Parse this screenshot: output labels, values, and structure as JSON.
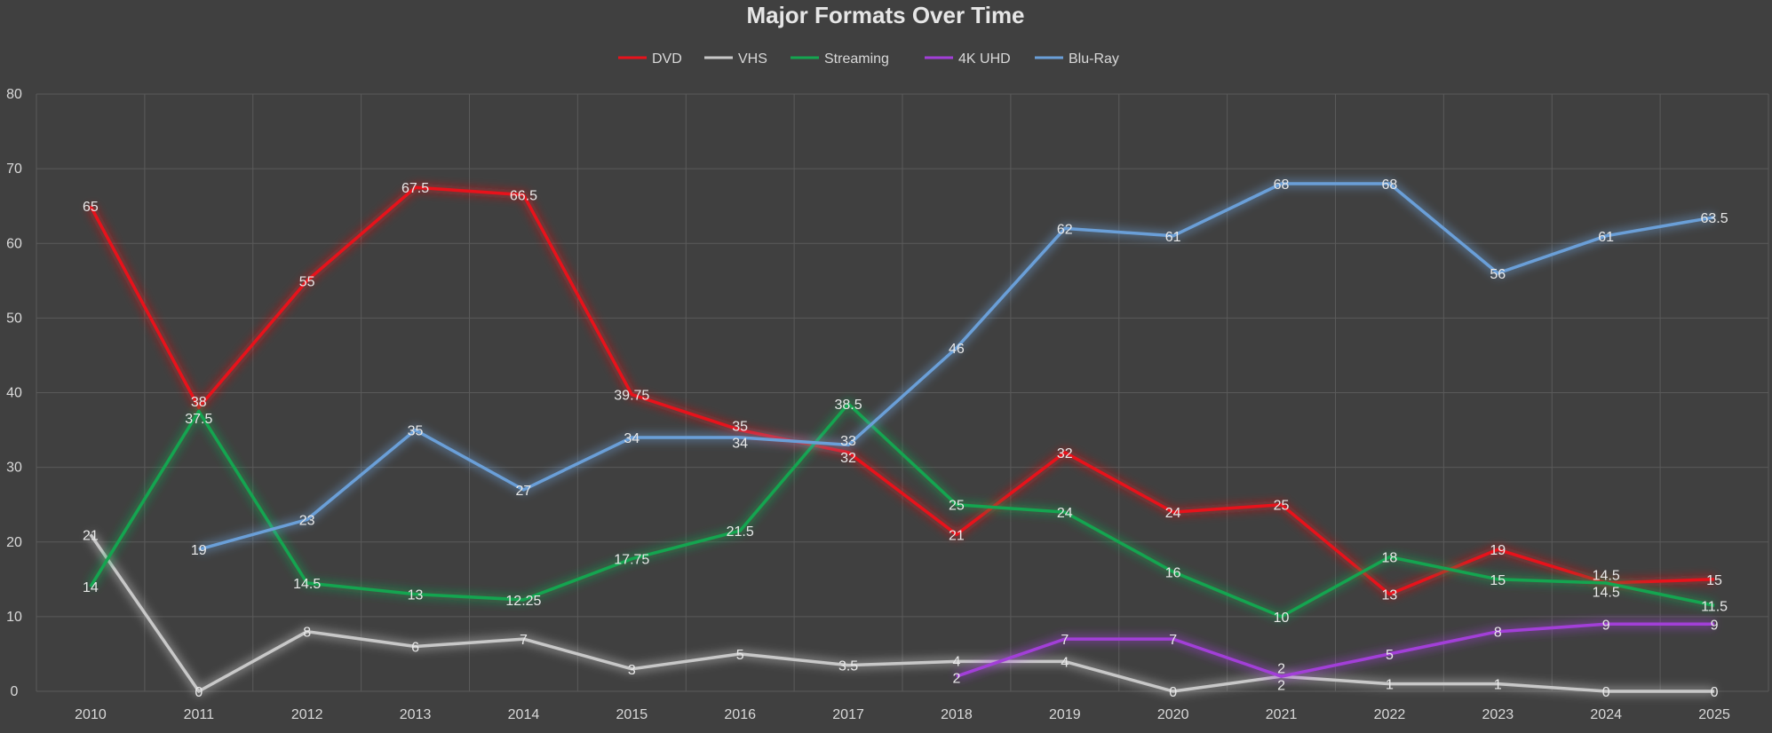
{
  "chart_data": {
    "type": "line",
    "title": "Major Formats Over Time",
    "xlabel": "",
    "ylabel": "",
    "categories": [
      "2010",
      "2011",
      "2012",
      "2013",
      "2014",
      "2015",
      "2016",
      "2017",
      "2018",
      "2019",
      "2020",
      "2021",
      "2022",
      "2023",
      "2024",
      "2025"
    ],
    "ylim": [
      0,
      80
    ],
    "yticks": [
      0,
      10,
      20,
      30,
      40,
      50,
      60,
      70,
      80
    ],
    "grid": true,
    "legend_position": "top",
    "data_labels": true,
    "series": [
      {
        "name": "DVD",
        "color": "#e8121b",
        "values": [
          65,
          38,
          55,
          67.5,
          66.5,
          39.75,
          35,
          32,
          21,
          32,
          24,
          25,
          13,
          19,
          14.5,
          15
        ]
      },
      {
        "name": "VHS",
        "color": "#c8c8c8",
        "values": [
          21,
          0,
          8,
          6,
          7,
          3,
          5,
          3.5,
          4,
          4,
          0,
          2,
          1,
          1,
          0,
          0
        ]
      },
      {
        "name": "Streaming",
        "color": "#14a550",
        "values": [
          14,
          37.5,
          14.5,
          13,
          12.25,
          17.75,
          21.5,
          38.5,
          25,
          24,
          16,
          10,
          18,
          15,
          14.5,
          11.5
        ]
      },
      {
        "name": "4K UHD",
        "color": "#a23fd8",
        "values": [
          null,
          null,
          null,
          null,
          null,
          null,
          null,
          null,
          2,
          7,
          7,
          2,
          5,
          8,
          9,
          9
        ]
      },
      {
        "name": "Blu-Ray",
        "color": "#6a9fd8",
        "values": [
          null,
          19,
          23,
          35,
          27,
          34,
          34,
          33,
          46,
          62,
          61,
          68,
          68,
          56,
          61,
          63.5
        ]
      }
    ]
  }
}
